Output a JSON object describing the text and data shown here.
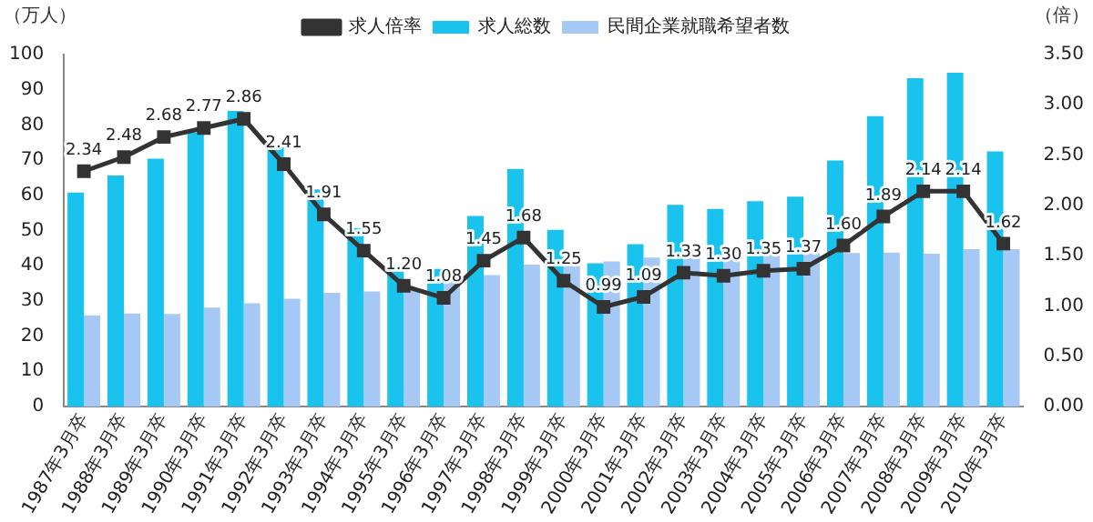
{
  "chart_data": {
    "type": "bar",
    "ylabel": "（万人）",
    "y2label": "（倍）",
    "categories": [
      "1987年3月卒",
      "1988年3月卒",
      "1989年3月卒",
      "1990年3月卒",
      "1991年3月卒",
      "1992年3月卒",
      "1993年3月卒",
      "1994年3月卒",
      "1995年3月卒",
      "1996年3月卒",
      "1997年3月卒",
      "1998年3月卒",
      "1999年3月卒",
      "2000年3月卒",
      "2001年3月卒",
      "2002年3月卒",
      "2003年3月卒",
      "2004年3月卒",
      "2005年3月卒",
      "2006年3月卒",
      "2007年3月卒",
      "2008年3月卒",
      "2009年3月卒",
      "2010年3月卒"
    ],
    "series": [
      {
        "name": "求人総数",
        "color": "#19c3ed",
        "values": [
          60.8,
          65.6,
          70.4,
          77.9,
          84.0,
          73.8,
          61.7,
          50.7,
          40.0,
          39.1,
          54.1,
          67.5,
          50.2,
          40.7,
          46.1,
          57.3,
          56.1,
          58.3,
          59.6,
          69.9,
          82.5,
          93.3,
          94.8,
          72.5
        ]
      },
      {
        "name": "民間企業就職希望者数",
        "color": "#a6c8f5",
        "values": [
          25.9,
          26.4,
          26.3,
          28.1,
          29.3,
          30.6,
          32.3,
          32.7,
          33.3,
          36.3,
          37.3,
          40.3,
          40.3,
          41.2,
          42.3,
          43.0,
          43.0,
          43.3,
          43.5,
          43.6,
          43.7,
          43.4,
          44.7,
          44.7
        ]
      },
      {
        "name": "求人倍率",
        "type": "line",
        "axis": "y2",
        "color": "#333333",
        "marker": "square",
        "values": [
          2.34,
          2.48,
          2.68,
          2.77,
          2.86,
          2.41,
          1.91,
          1.55,
          1.2,
          1.08,
          1.45,
          1.68,
          1.25,
          0.99,
          1.09,
          1.33,
          1.3,
          1.35,
          1.37,
          1.6,
          1.89,
          2.14,
          2.14,
          1.62
        ],
        "value_labels": [
          "2.34",
          "2.48",
          "2.68",
          "2.77",
          "2.86",
          "2.41",
          "1.91",
          "1.55",
          "1.20",
          "1.08",
          "1.45",
          "1.68",
          "1.25",
          "0.99",
          "1.09",
          "1.33",
          "1.30",
          "1.35",
          "1.37",
          "1.60",
          "1.89",
          "2.14",
          "2.14",
          "1.62"
        ]
      }
    ],
    "ylim": [
      0,
      100
    ],
    "yticks": [
      0,
      10,
      20,
      30,
      40,
      50,
      60,
      70,
      80,
      90,
      100
    ],
    "y2lim": [
      0,
      3.5
    ],
    "y2ticks": [
      {
        "value": 0,
        "label": "0.00"
      },
      {
        "value": 0.5,
        "label": "0.50"
      },
      {
        "value": 1,
        "label": "1.00"
      },
      {
        "value": 1.5,
        "label": "1.50"
      },
      {
        "value": 2,
        "label": "2.00"
      },
      {
        "value": 2.5,
        "label": "2.50"
      },
      {
        "value": 3,
        "label": "3.00"
      },
      {
        "value": 3.5,
        "label": "3.50"
      }
    ],
    "grid": false,
    "legend": "top"
  }
}
